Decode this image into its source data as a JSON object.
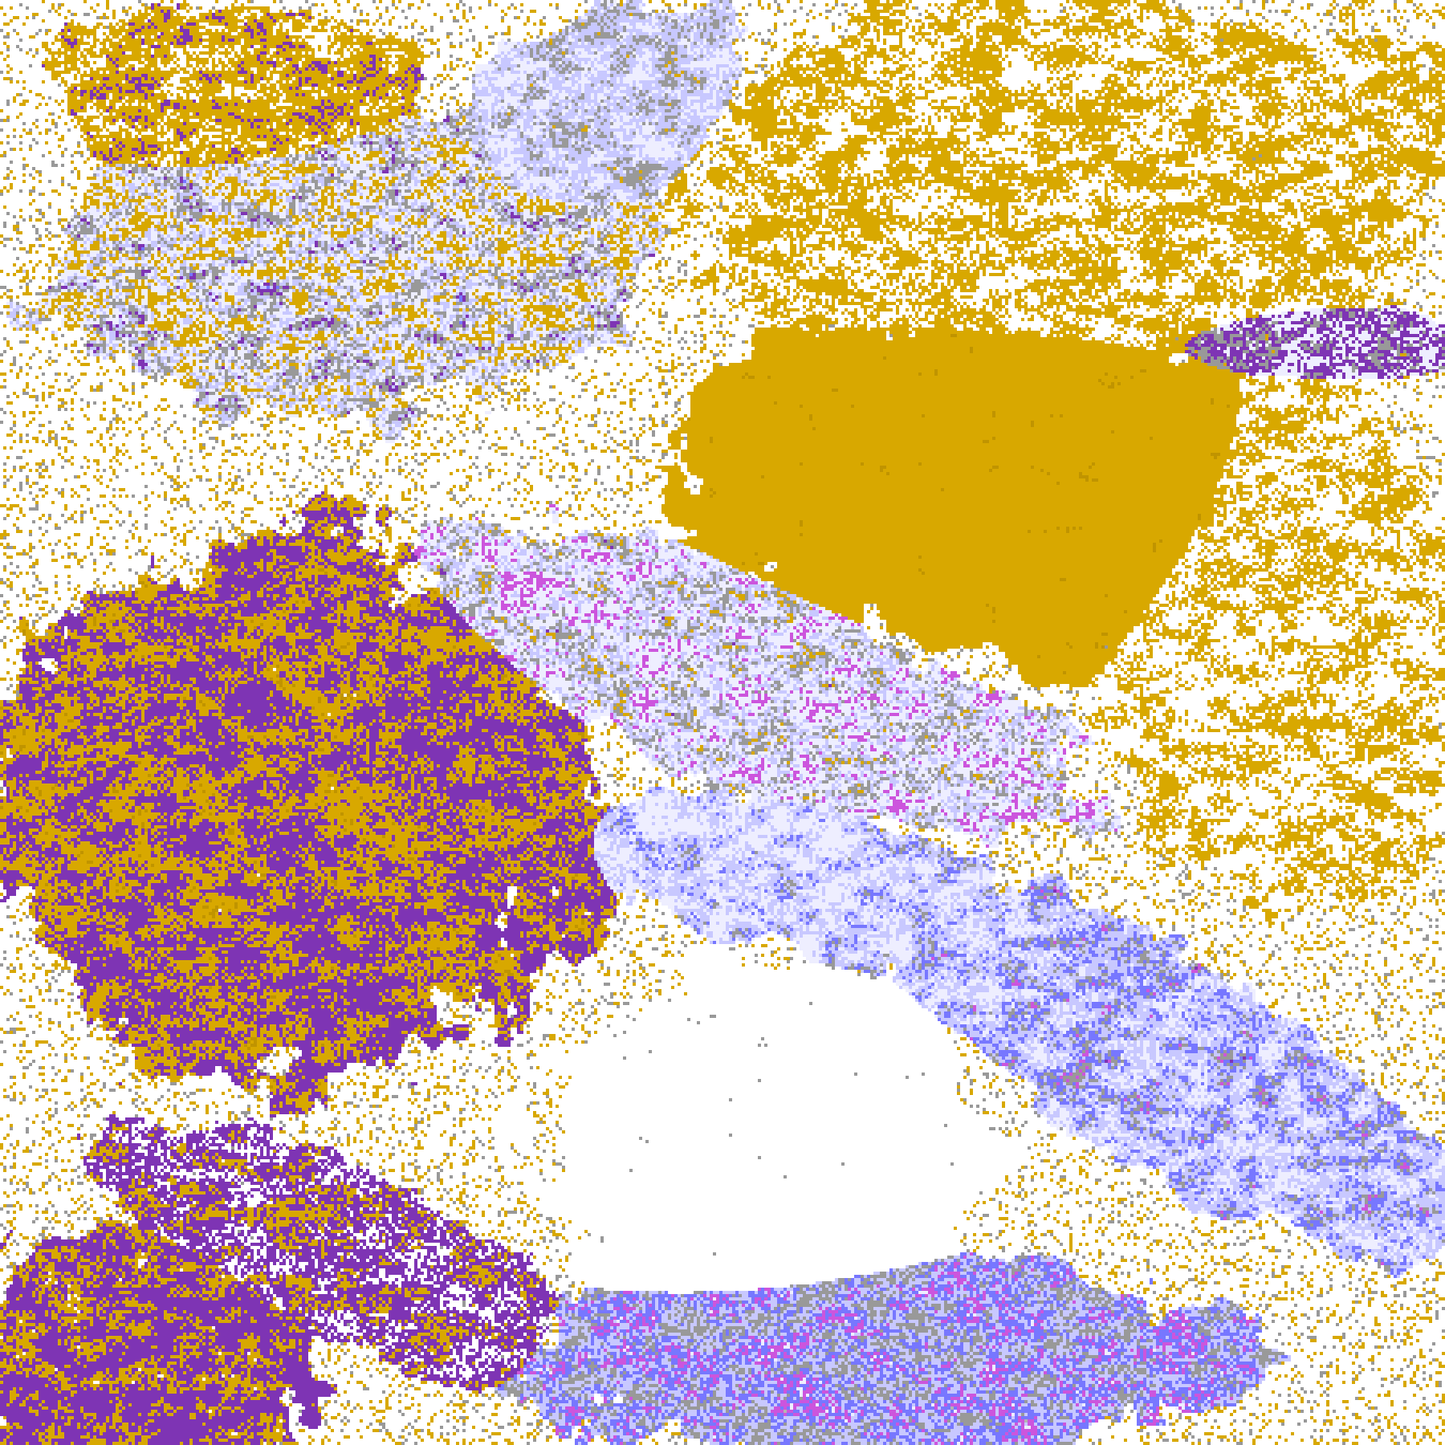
{
  "map": {
    "classes": [
      {
        "key": "clear",
        "color": "#ffffff"
      },
      {
        "key": "gold",
        "color": "#d8a800"
      },
      {
        "key": "dark-gold",
        "color": "#c09400"
      },
      {
        "key": "purple",
        "color": "#7e34b4"
      },
      {
        "key": "magenta",
        "color": "#cc55dd"
      },
      {
        "key": "lavender",
        "color": "#eeeeff"
      },
      {
        "key": "periwinkle",
        "color": "#c8c8ff"
      },
      {
        "key": "blue",
        "color": "#7777ff"
      },
      {
        "key": "gray",
        "color": "#999999"
      },
      {
        "key": "light-gray",
        "color": "#b4b4b4"
      }
    ]
  }
}
